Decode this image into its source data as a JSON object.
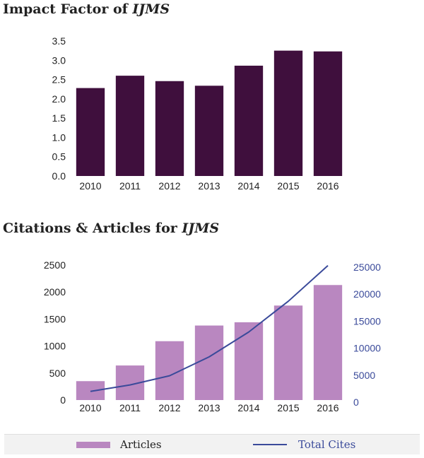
{
  "colors": {
    "impact_bar": "#3f0f3d",
    "articles_bar": "#b987c0",
    "cites_line": "#3a4a9a"
  },
  "chart_data": [
    {
      "type": "bar",
      "title_prefix": "Impact Factor of ",
      "title_journal": "IJMS",
      "categories": [
        "2010",
        "2011",
        "2012",
        "2013",
        "2014",
        "2015",
        "2016"
      ],
      "values": [
        2.28,
        2.6,
        2.46,
        2.34,
        2.86,
        3.25,
        3.23
      ],
      "ylim": [
        0,
        3.5
      ],
      "yticks": [
        "0.0",
        "0.5",
        "1.0",
        "1.5",
        "2.0",
        "2.5",
        "3.0",
        "3.5"
      ],
      "grid": false
    },
    {
      "type": "bar+line",
      "title_prefix": "Citations & Articles for ",
      "title_journal": "IJMS",
      "categories": [
        "2010",
        "2011",
        "2012",
        "2013",
        "2014",
        "2015",
        "2016"
      ],
      "series": [
        {
          "name": "Articles",
          "axis": "left",
          "type": "bar",
          "values": [
            350,
            640,
            1090,
            1380,
            1440,
            1750,
            2130
          ]
        },
        {
          "name": "Total Cites",
          "axis": "right",
          "type": "line",
          "values": [
            1600,
            2800,
            4500,
            8000,
            12600,
            18300,
            24900
          ]
        }
      ],
      "ylim_left": [
        0,
        2500
      ],
      "yticks_left": [
        "0",
        "500",
        "1000",
        "1500",
        "2000",
        "2500"
      ],
      "ylim_right": [
        0,
        25000
      ],
      "yticks_right": [
        "0",
        "5000",
        "10000",
        "15000",
        "20000",
        "25000"
      ],
      "legend_placement": "bottom",
      "grid": false
    }
  ]
}
